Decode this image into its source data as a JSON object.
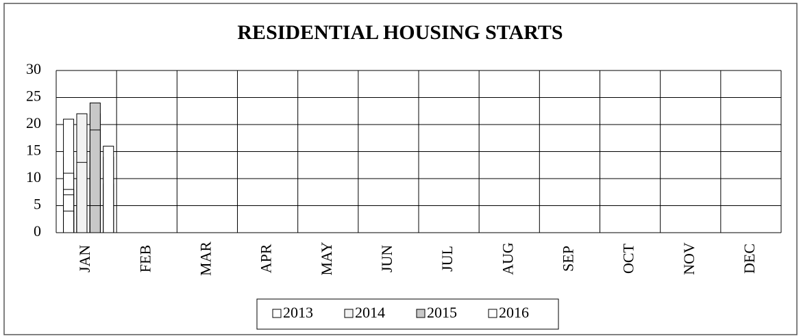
{
  "chart_data": {
    "type": "bar",
    "title": "RESIDENTIAL HOUSING STARTS",
    "categories": [
      "JAN",
      "FEB",
      "MAR",
      "APR",
      "MAY",
      "JUN",
      "JUL",
      "AUG",
      "SEP",
      "OCT",
      "NOV",
      "DEC"
    ],
    "series": [
      {
        "name": "2013",
        "color": "#ffffff",
        "values": [
          14,
          4,
          8,
          11,
          21,
          8,
          11,
          4,
          8,
          4,
          7,
          4
        ]
      },
      {
        "name": "2014",
        "color": "#f2f2f2",
        "values": [
          3,
          6,
          15,
          10,
          9,
          12,
          5,
          5,
          22,
          12,
          3,
          13
        ]
      },
      {
        "name": "2015",
        "color": "#c8c8c8",
        "values": [
          11,
          12,
          8,
          12,
          22,
          16,
          24,
          3,
          15,
          19,
          4,
          5
        ]
      },
      {
        "name": "2016",
        "color": "#ffffff",
        "values": [
          9,
          14,
          16,
          null,
          null,
          null,
          null,
          null,
          null,
          null,
          null,
          null
        ]
      }
    ],
    "ylim": [
      0,
      30
    ],
    "yticks": [
      0,
      5,
      10,
      15,
      20,
      25,
      30
    ],
    "grid": true,
    "legend": "bottom"
  }
}
